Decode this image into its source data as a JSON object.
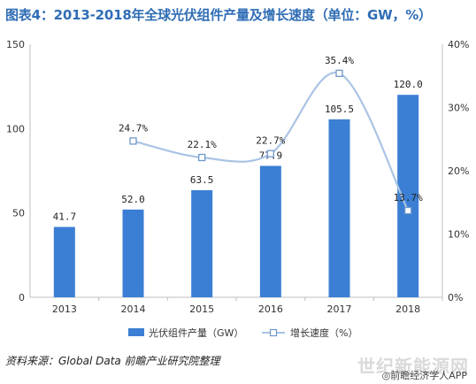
{
  "title": "图表4：2013-2018年全球光伏组件产量及增长速度（单位：GW，%）",
  "source": "资料来源：Global Data  前瞻产业研究院整理",
  "watermark_text": "世纪新能源网",
  "watermark_app": "◎前瞻经济学人APP",
  "colors": {
    "bar": "#3b7fd4",
    "line": "#a9c4e4",
    "marker_fill": "#ffffff",
    "marker_stroke": "#6f98cc",
    "title": "#2f6db5"
  },
  "chart_data": {
    "type": "bar",
    "categories": [
      "2013",
      "2014",
      "2015",
      "2016",
      "2017",
      "2018"
    ],
    "series": [
      {
        "name": "光伏组件产量（GW）",
        "type": "bar",
        "axis": "left",
        "values": [
          41.7,
          52.0,
          63.5,
          77.9,
          105.5,
          120.0
        ],
        "labels": [
          "41.7",
          "52.0",
          "63.5",
          "77.9",
          "105.5",
          "120.0"
        ]
      },
      {
        "name": "增长速度（%）",
        "type": "line",
        "axis": "right",
        "values": [
          null,
          24.7,
          22.1,
          22.7,
          35.4,
          13.7
        ],
        "labels": [
          "",
          "24.7%",
          "22.1%",
          "22.7%",
          "35.4%",
          "13.7%"
        ]
      }
    ],
    "y_left": {
      "min": 0,
      "max": 150,
      "ticks": [
        "0",
        "50",
        "100",
        "150"
      ]
    },
    "y_right": {
      "min": 0,
      "max": 40,
      "ticks": [
        "0%",
        "10%",
        "20%",
        "30%",
        "40%"
      ]
    },
    "legend_placement": "bottom",
    "grid": false
  }
}
